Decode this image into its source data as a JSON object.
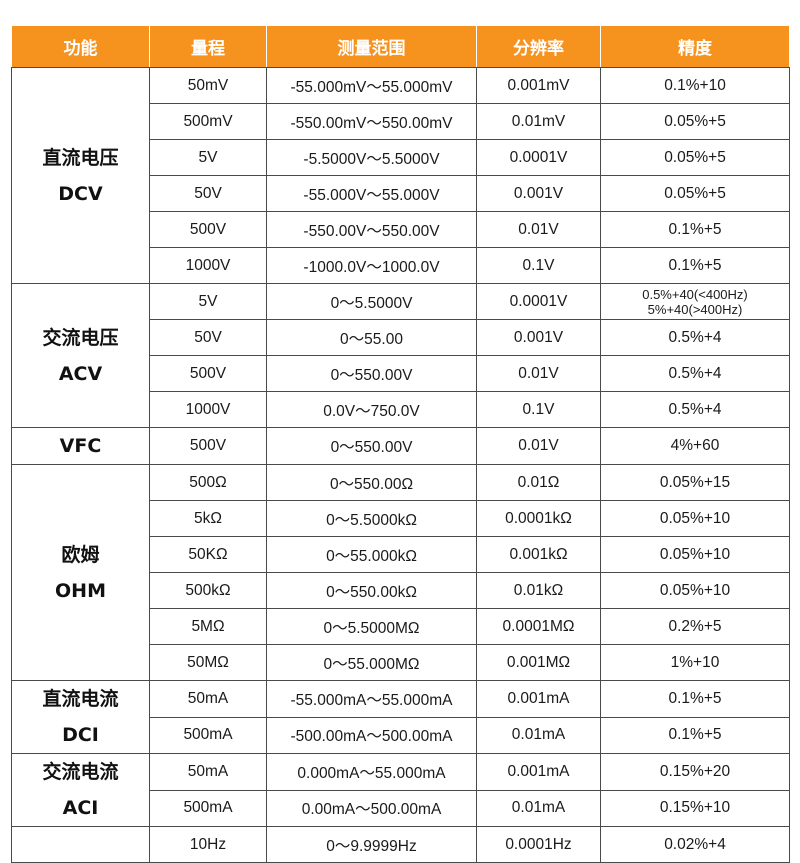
{
  "headers": [
    "功能",
    "量程",
    "测量范围",
    "分辨率",
    "精度"
  ],
  "groups": [
    {
      "name": "直流电压",
      "code": "DCV",
      "rows": [
        {
          "range": "50mV",
          "span": "-55.000mV～55.000mV",
          "resolution": "0.001mV",
          "accuracy": "0.1%+10"
        },
        {
          "range": "500mV",
          "span": "-550.00mV～550.00mV",
          "resolution": "0.01mV",
          "accuracy": "0.05%+5"
        },
        {
          "range": "5V",
          "span": "-5.5000V～5.5000V",
          "resolution": "0.0001V",
          "accuracy": "0.05%+5"
        },
        {
          "range": "50V",
          "span": "-55.000V～55.000V",
          "resolution": "0.001V",
          "accuracy": "0.05%+5"
        },
        {
          "range": "500V",
          "span": "-550.00V～550.00V",
          "resolution": "0.01V",
          "accuracy": "0.1%+5"
        },
        {
          "range": "1000V",
          "span": "-1000.0V～1000.0V",
          "resolution": "0.1V",
          "accuracy": "0.1%+5"
        }
      ]
    },
    {
      "name": "交流电压",
      "code": "ACV",
      "rows": [
        {
          "range": "5V",
          "span": "0～5.5000V",
          "resolution": "0.0001V",
          "accuracy": "0.5%+40(<400Hz)",
          "accuracy2": "5%+40(>400Hz)"
        },
        {
          "range": "50V",
          "span": "0～55.00",
          "resolution": "0.001V",
          "accuracy": "0.5%+4"
        },
        {
          "range": "500V",
          "span": "0～550.00V",
          "resolution": "0.01V",
          "accuracy": "0.5%+4"
        },
        {
          "range": "1000V",
          "span": "0.0V～750.0V",
          "resolution": "0.1V",
          "accuracy": "0.5%+4"
        }
      ]
    },
    {
      "name": "VFC",
      "rows": [
        {
          "range": "500V",
          "span": "0～550.00V",
          "resolution": "0.01V",
          "accuracy": "4%+60"
        }
      ]
    },
    {
      "name": "欧姆",
      "code": "OHM",
      "rows": [
        {
          "range": "500Ω",
          "span": "0～550.00Ω",
          "resolution": "0.01Ω",
          "accuracy": "0.05%+15"
        },
        {
          "range": "5kΩ",
          "span": "0～5.5000kΩ",
          "resolution": "0.0001kΩ",
          "accuracy": "0.05%+10"
        },
        {
          "range": "50KΩ",
          "span": "0～55.000kΩ",
          "resolution": "0.001kΩ",
          "accuracy": "0.05%+10"
        },
        {
          "range": "500kΩ",
          "span": "0～550.00kΩ",
          "resolution": "0.01kΩ",
          "accuracy": "0.05%+10"
        },
        {
          "range": "5MΩ",
          "span": "0～5.5000MΩ",
          "resolution": "0.0001MΩ",
          "accuracy": "0.2%+5"
        },
        {
          "range": "50MΩ",
          "span": "0～55.000MΩ",
          "resolution": "0.001MΩ",
          "accuracy": "1%+10"
        }
      ]
    },
    {
      "name": "直流电流",
      "code": "DCI",
      "rows": [
        {
          "range": "50mA",
          "span": "-55.000mA～55.000mA",
          "resolution": "0.001mA",
          "accuracy": "0.1%+5"
        },
        {
          "range": "500mA",
          "span": "-500.00mA～500.00mA",
          "resolution": "0.01mA",
          "accuracy": "0.1%+5"
        }
      ]
    },
    {
      "name": "交流电流",
      "code": "ACI",
      "rows": [
        {
          "range": "50mA",
          "span": "0.000mA～55.000mA",
          "resolution": "0.001mA",
          "accuracy": "0.15%+20"
        },
        {
          "range": "500mA",
          "span": "0.00mA～500.00mA",
          "resolution": "0.01mA",
          "accuracy": "0.15%+10"
        }
      ]
    },
    {
      "name": "",
      "rows": [
        {
          "range": "10Hz",
          "span": "0～9.9999Hz",
          "resolution": "0.0001Hz",
          "accuracy": "0.02%+4"
        }
      ]
    }
  ]
}
